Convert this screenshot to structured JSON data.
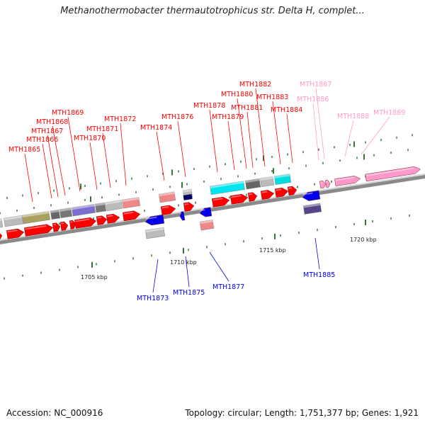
{
  "title": "Methanothermobacter thermautotrophicus str. Delta H, complet...",
  "footer": {
    "accession": "Accession: NC_000916",
    "topology": "Topology: circular; Length: 1,751,377 bp; Genes: 1,921"
  },
  "axis_labels": [
    "1705 kbp",
    "1710 kbp",
    "1715 kbp",
    "1720 kbp"
  ],
  "colors": {
    "forward_gene": "#ff0000",
    "reverse_gene": "#0000ee",
    "faded_gene": "#ff99cc",
    "backbone": "#999999",
    "tick": "#337733"
  },
  "genes": [
    {
      "name": "MTH1865",
      "strand": "forward"
    },
    {
      "name": "MTH1866",
      "strand": "forward"
    },
    {
      "name": "MTH1867",
      "strand": "forward"
    },
    {
      "name": "MTH1868",
      "strand": "forward"
    },
    {
      "name": "MTH1869",
      "strand": "forward"
    },
    {
      "name": "MTH1870",
      "strand": "forward"
    },
    {
      "name": "MTH1871",
      "strand": "forward"
    },
    {
      "name": "MTH1872",
      "strand": "forward"
    },
    {
      "name": "MTH1873",
      "strand": "reverse"
    },
    {
      "name": "MTH1874",
      "strand": "forward"
    },
    {
      "name": "MTH1875",
      "strand": "reverse"
    },
    {
      "name": "MTH1876",
      "strand": "forward"
    },
    {
      "name": "MTH1877",
      "strand": "reverse"
    },
    {
      "name": "MTH1878",
      "strand": "forward"
    },
    {
      "name": "MTH1879",
      "strand": "forward"
    },
    {
      "name": "MTH1880",
      "strand": "forward"
    },
    {
      "name": "MTH1881",
      "strand": "forward"
    },
    {
      "name": "MTH1882",
      "strand": "forward"
    },
    {
      "name": "MTH1883",
      "strand": "forward"
    },
    {
      "name": "MTH1884",
      "strand": "forward"
    },
    {
      "name": "MTH1885",
      "strand": "reverse"
    },
    {
      "name": "MTH1886",
      "strand": "faded"
    },
    {
      "name": "MTH1887",
      "strand": "faded"
    },
    {
      "name": "MTH1888",
      "strand": "faded"
    },
    {
      "name": "MTH1889",
      "strand": "faded"
    }
  ]
}
